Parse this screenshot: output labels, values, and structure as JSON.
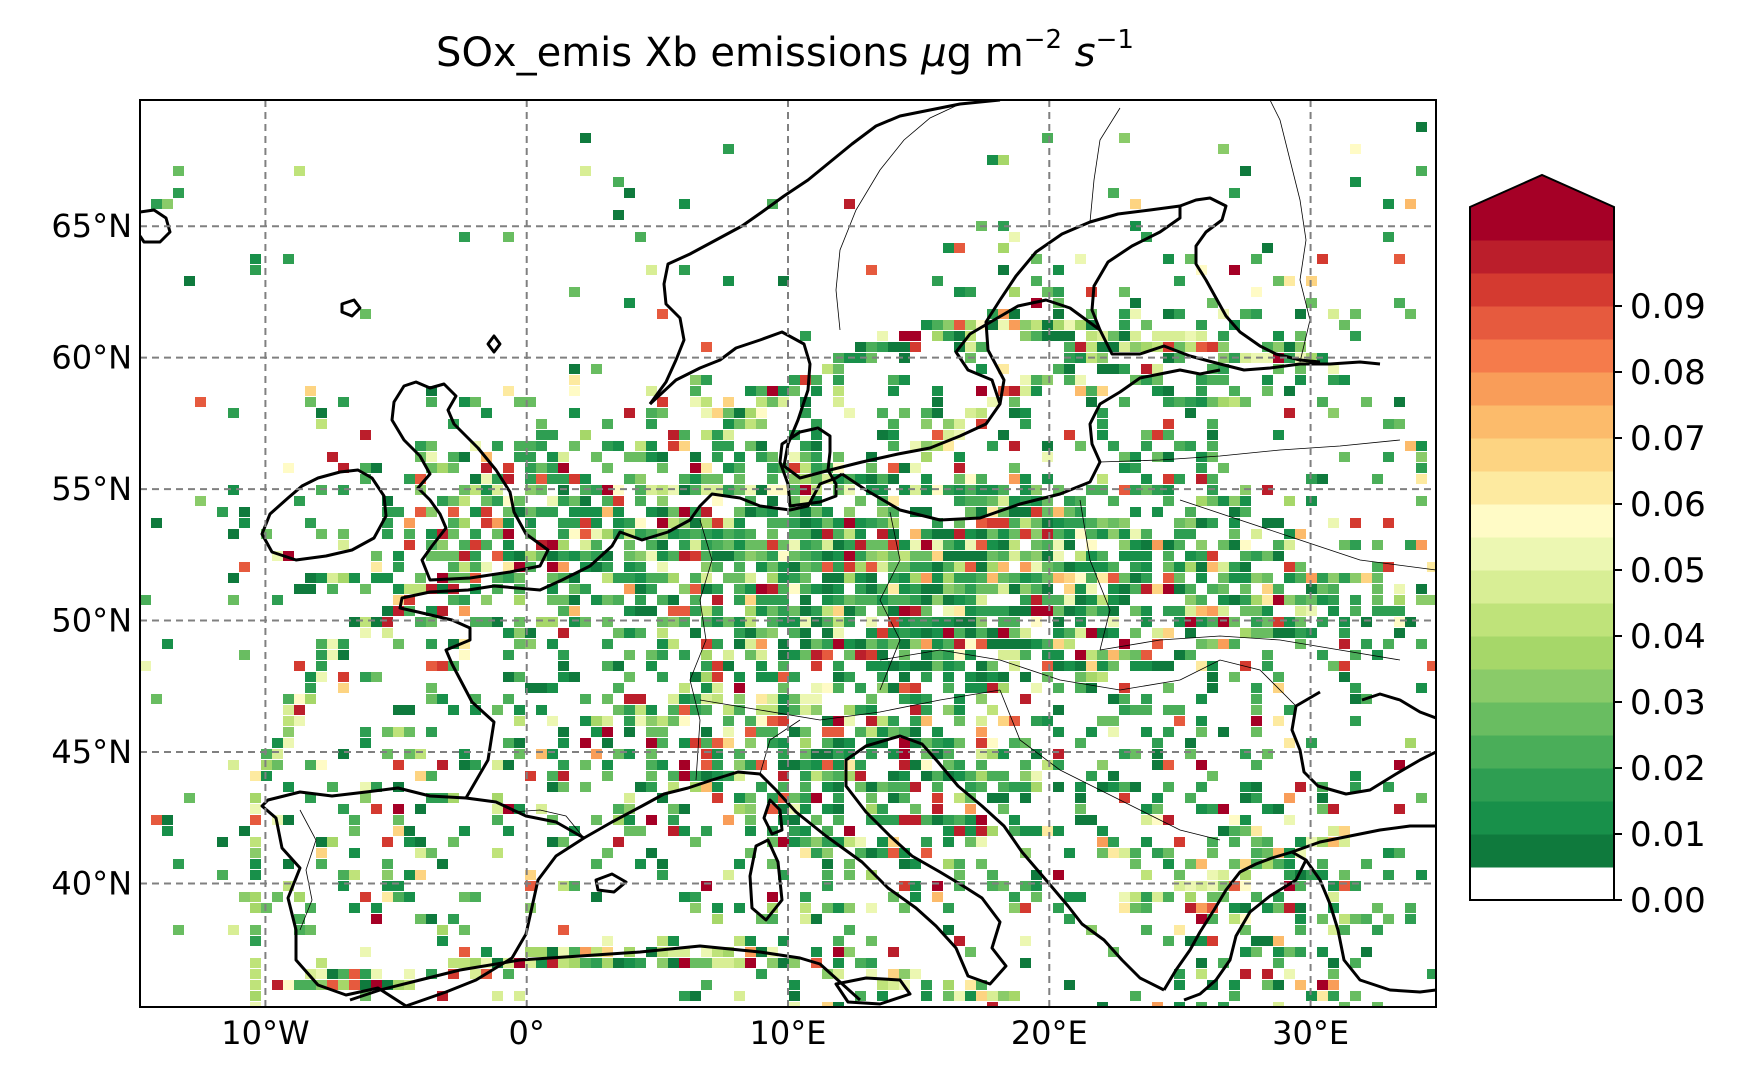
{
  "title": {
    "prefix": "SOx_emis Xb emissions ",
    "mu": "μ",
    "unit_g_m": "g m",
    "exp_m": "−2",
    "unit_s": " s",
    "exp_s": "−1"
  },
  "map": {
    "extent": {
      "lon_min": -14.8,
      "lon_max": 34.8,
      "lat_min": 35.3,
      "lat_max": 69.8
    },
    "lat_ticks": [
      {
        "value": 40,
        "label": "40°N"
      },
      {
        "value": 45,
        "label": "45°N"
      },
      {
        "value": 50,
        "label": "50°N"
      },
      {
        "value": 55,
        "label": "55°N"
      },
      {
        "value": 60,
        "label": "60°N"
      },
      {
        "value": 65,
        "label": "65°N"
      }
    ],
    "lon_ticks": [
      {
        "value": -10,
        "label": "10°W"
      },
      {
        "value": 0,
        "label": "0°"
      },
      {
        "value": 10,
        "label": "10°E"
      },
      {
        "value": 20,
        "label": "20°E"
      },
      {
        "value": 30,
        "label": "30°E"
      }
    ],
    "gridlines": "dashed gray",
    "coastline_color": "#000000"
  },
  "colorbar": {
    "ticks": [
      {
        "value": 0.0,
        "label": "0.00"
      },
      {
        "value": 0.01,
        "label": "0.01"
      },
      {
        "value": 0.02,
        "label": "0.02"
      },
      {
        "value": 0.03,
        "label": "0.03"
      },
      {
        "value": 0.04,
        "label": "0.04"
      },
      {
        "value": 0.05,
        "label": "0.05"
      },
      {
        "value": 0.06,
        "label": "0.06"
      },
      {
        "value": 0.07,
        "label": "0.07"
      },
      {
        "value": 0.08,
        "label": "0.08"
      },
      {
        "value": 0.09,
        "label": "0.09"
      }
    ],
    "bins": [
      "#ffffff",
      "#0f7a3d",
      "#18904a",
      "#2e9e52",
      "#4aae59",
      "#69bd61",
      "#8acb69",
      "#a6d769",
      "#bfe37a",
      "#d8ee95",
      "#ecf7b2",
      "#fffbc6",
      "#fdeaa0",
      "#fdd482",
      "#fcbb6b",
      "#f99d59",
      "#f57b4b",
      "#e65a3e",
      "#d43a30",
      "#bb1e2b",
      "#a50026"
    ],
    "extend": "max"
  }
}
